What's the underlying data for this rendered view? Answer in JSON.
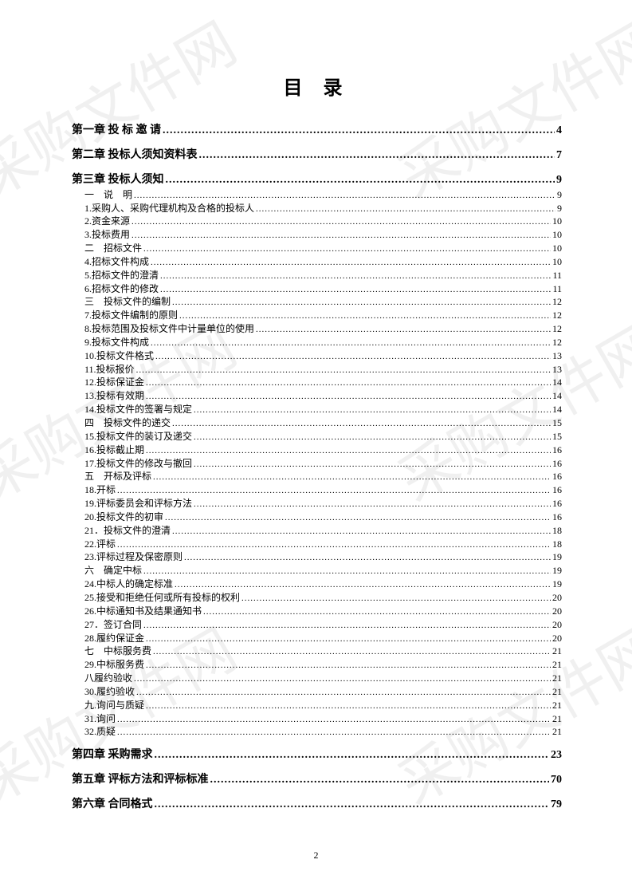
{
  "page_title": "目 录",
  "page_number": "2",
  "watermark_text": "采购文件网",
  "chapters": [
    {
      "label": "第一章  投 标 邀 请",
      "page": "4",
      "bold": true,
      "items": []
    },
    {
      "label": "第二章   投标人须知资料表",
      "page": "7",
      "bold": true,
      "items": []
    },
    {
      "label": "第三章   投标人须知",
      "page": "9",
      "bold": true,
      "items": [
        {
          "label": "一　说　明",
          "page": "9"
        },
        {
          "label": "1.采购人、采购代理机构及合格的投标人",
          "page": "9"
        },
        {
          "label": "2.资金来源",
          "page": "10"
        },
        {
          "label": "3.投标费用",
          "page": "10"
        },
        {
          "label": "二　招标文件",
          "page": "10"
        },
        {
          "label": "4.招标文件构成",
          "page": "10"
        },
        {
          "label": "5.招标文件的澄清",
          "page": "11"
        },
        {
          "label": "6.招标文件的修改",
          "page": "11"
        },
        {
          "label": "三　投标文件的编制",
          "page": "12"
        },
        {
          "label": "7.投标文件编制的原则",
          "page": "12"
        },
        {
          "label": "8.投标范围及投标文件中计量单位的使用",
          "page": "12"
        },
        {
          "label": "9.投标文件构成",
          "page": "12"
        },
        {
          "label": "10.投标文件格式",
          "page": "13"
        },
        {
          "label": "11.投标报价",
          "page": "13"
        },
        {
          "label": "12.投标保证金",
          "page": "14"
        },
        {
          "label": "13.投标有效期",
          "page": "14"
        },
        {
          "label": "14.投标文件的签署与规定",
          "page": "14"
        },
        {
          "label": "四　投标文件的递交",
          "page": "15"
        },
        {
          "label": "15.投标文件的装订及递交",
          "page": "15"
        },
        {
          "label": "16.投标截止期",
          "page": "16"
        },
        {
          "label": "17.投标文件的修改与撤回",
          "page": "16"
        },
        {
          "label": "五　开标及评标",
          "page": "16"
        },
        {
          "label": "18.开标",
          "page": "16"
        },
        {
          "label": "19.评标委员会和评标方法",
          "page": "16"
        },
        {
          "label": "20.投标文件的初审",
          "page": "16"
        },
        {
          "label": "21．投标文件的澄清",
          "page": "18"
        },
        {
          "label": "22.评标",
          "page": "18"
        },
        {
          "label": "23.评标过程及保密原则",
          "page": "19"
        },
        {
          "label": "六　确定中标",
          "page": "19"
        },
        {
          "label": "24.中标人的确定标准",
          "page": "19"
        },
        {
          "label": "25.接受和拒绝任何或所有投标的权利",
          "page": "20"
        },
        {
          "label": "26.中标通知书及结果通知书",
          "page": "20"
        },
        {
          "label": "27．签订合同",
          "page": "20"
        },
        {
          "label": "28.履约保证金",
          "page": "20"
        },
        {
          "label": "七　中标服务费",
          "page": "21"
        },
        {
          "label": "29.中标服务费",
          "page": "21"
        },
        {
          "label": "八履约验收",
          "page": "21"
        },
        {
          "label": "30.履约验收",
          "page": "21"
        },
        {
          "label": "九.询问与质疑",
          "page": "21"
        },
        {
          "label": "31.询问",
          "page": "21"
        },
        {
          "label": "32.质疑",
          "page": "21"
        }
      ]
    },
    {
      "label": "第四章 采购需求",
      "page": "23",
      "bold": true,
      "items": []
    },
    {
      "label": "第五章   评标方法和评标标准",
      "page": "70",
      "bold": true,
      "items": []
    },
    {
      "label": "第六章   合同格式",
      "page": "79",
      "bold": true,
      "items": []
    }
  ]
}
